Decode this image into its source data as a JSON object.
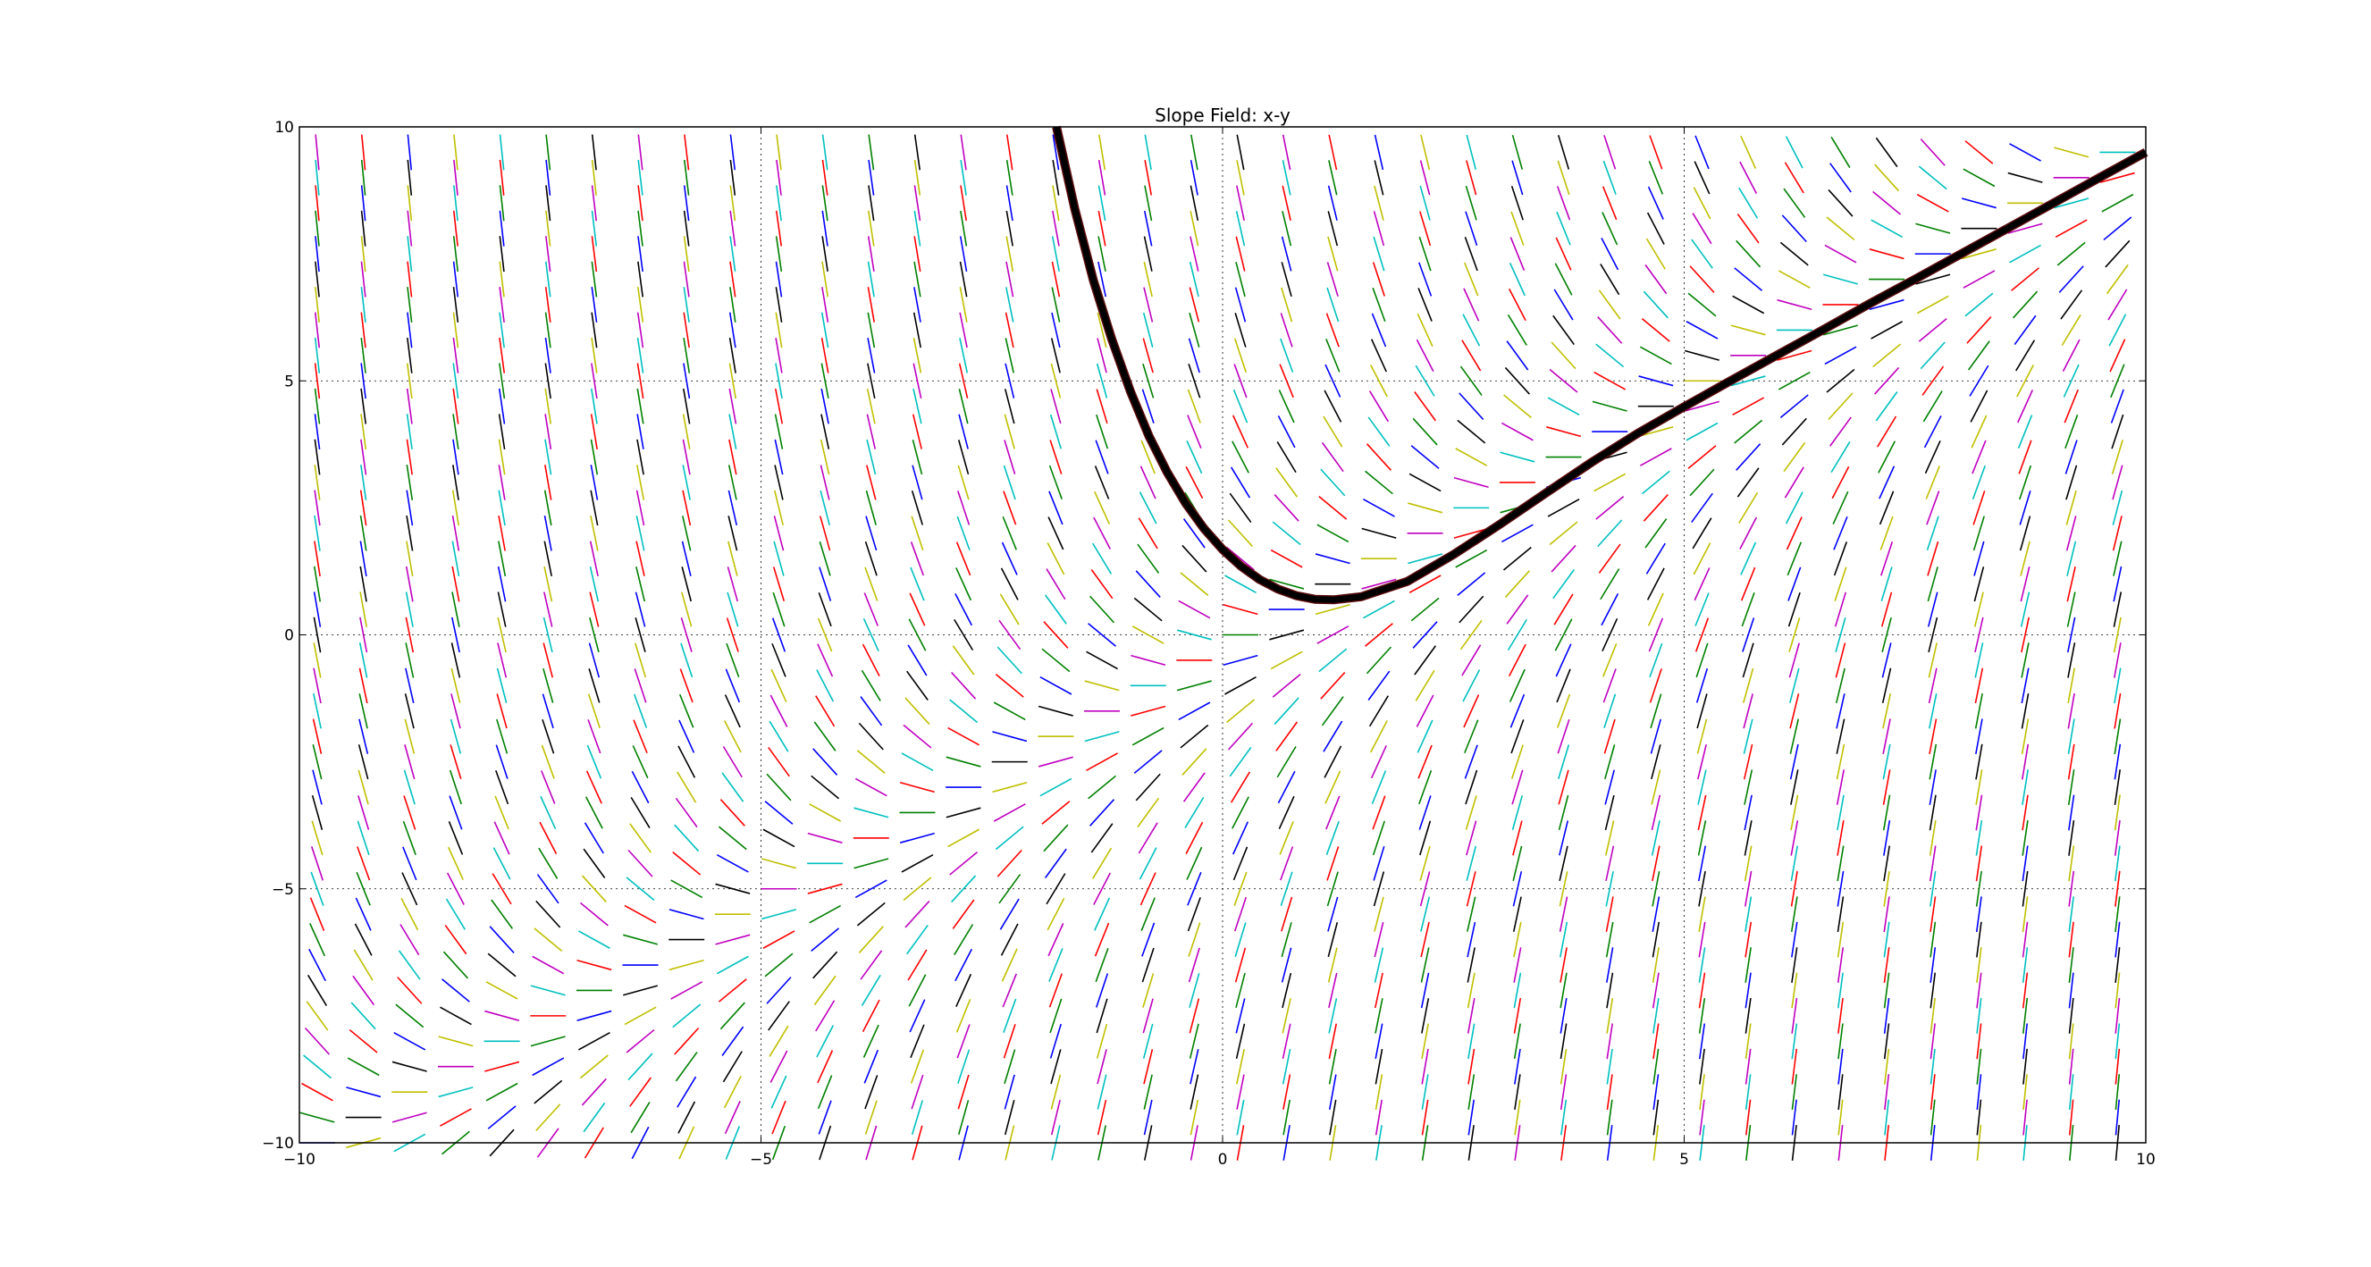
{
  "chart_data": {
    "type": "line",
    "title": "Slope Field: x-y",
    "xlabel": "",
    "ylabel": "",
    "xlim": [
      -10,
      10
    ],
    "ylim": [
      -10,
      10
    ],
    "x_ticks": [
      -10,
      -5,
      0,
      5,
      10
    ],
    "y_ticks": [
      -10,
      -5,
      0,
      5,
      10
    ],
    "x_tick_labels": [
      "−10",
      "−5",
      "0",
      "5",
      "10"
    ],
    "y_tick_labels": [
      "−10",
      "−5",
      "0",
      "5",
      "10"
    ],
    "grid": true,
    "legend": "none",
    "slope_field": {
      "equation": "x-y",
      "x_start": -10,
      "x_end": 9.5,
      "x_step": 0.5,
      "y_start": -10,
      "y_end": 9.5,
      "y_step": 0.5,
      "colors": [
        "#0000ff",
        "#008000",
        "#ff0000",
        "#00bfbf",
        "#bf00bf",
        "#bfbf00",
        "#000000"
      ]
    },
    "solution_curve": {
      "x": [
        -1.8,
        -1.6,
        -1.4,
        -1.2,
        -1.0,
        -0.8,
        -0.6,
        -0.4,
        -0.2,
        0.0,
        0.2,
        0.4,
        0.6,
        0.8,
        1.0,
        1.2,
        1.5,
        2.0,
        2.5,
        3.0,
        3.5,
        4.0,
        4.5,
        5.0,
        5.5,
        6.0,
        6.5,
        7.0,
        7.5,
        8.0,
        8.5,
        9.0,
        9.5,
        10.0
      ],
      "y": [
        10.0,
        8.38,
        6.98,
        5.82,
        4.8,
        3.92,
        3.2,
        2.59,
        2.09,
        1.68,
        1.35,
        1.09,
        0.9,
        0.77,
        0.7,
        0.69,
        0.75,
        1.05,
        1.58,
        2.17,
        2.79,
        3.4,
        3.97,
        4.49,
        5.0,
        5.5,
        6.0,
        6.51,
        7.0,
        7.5,
        8.0,
        8.5,
        9.0,
        9.5
      ],
      "color": "#000000"
    }
  }
}
